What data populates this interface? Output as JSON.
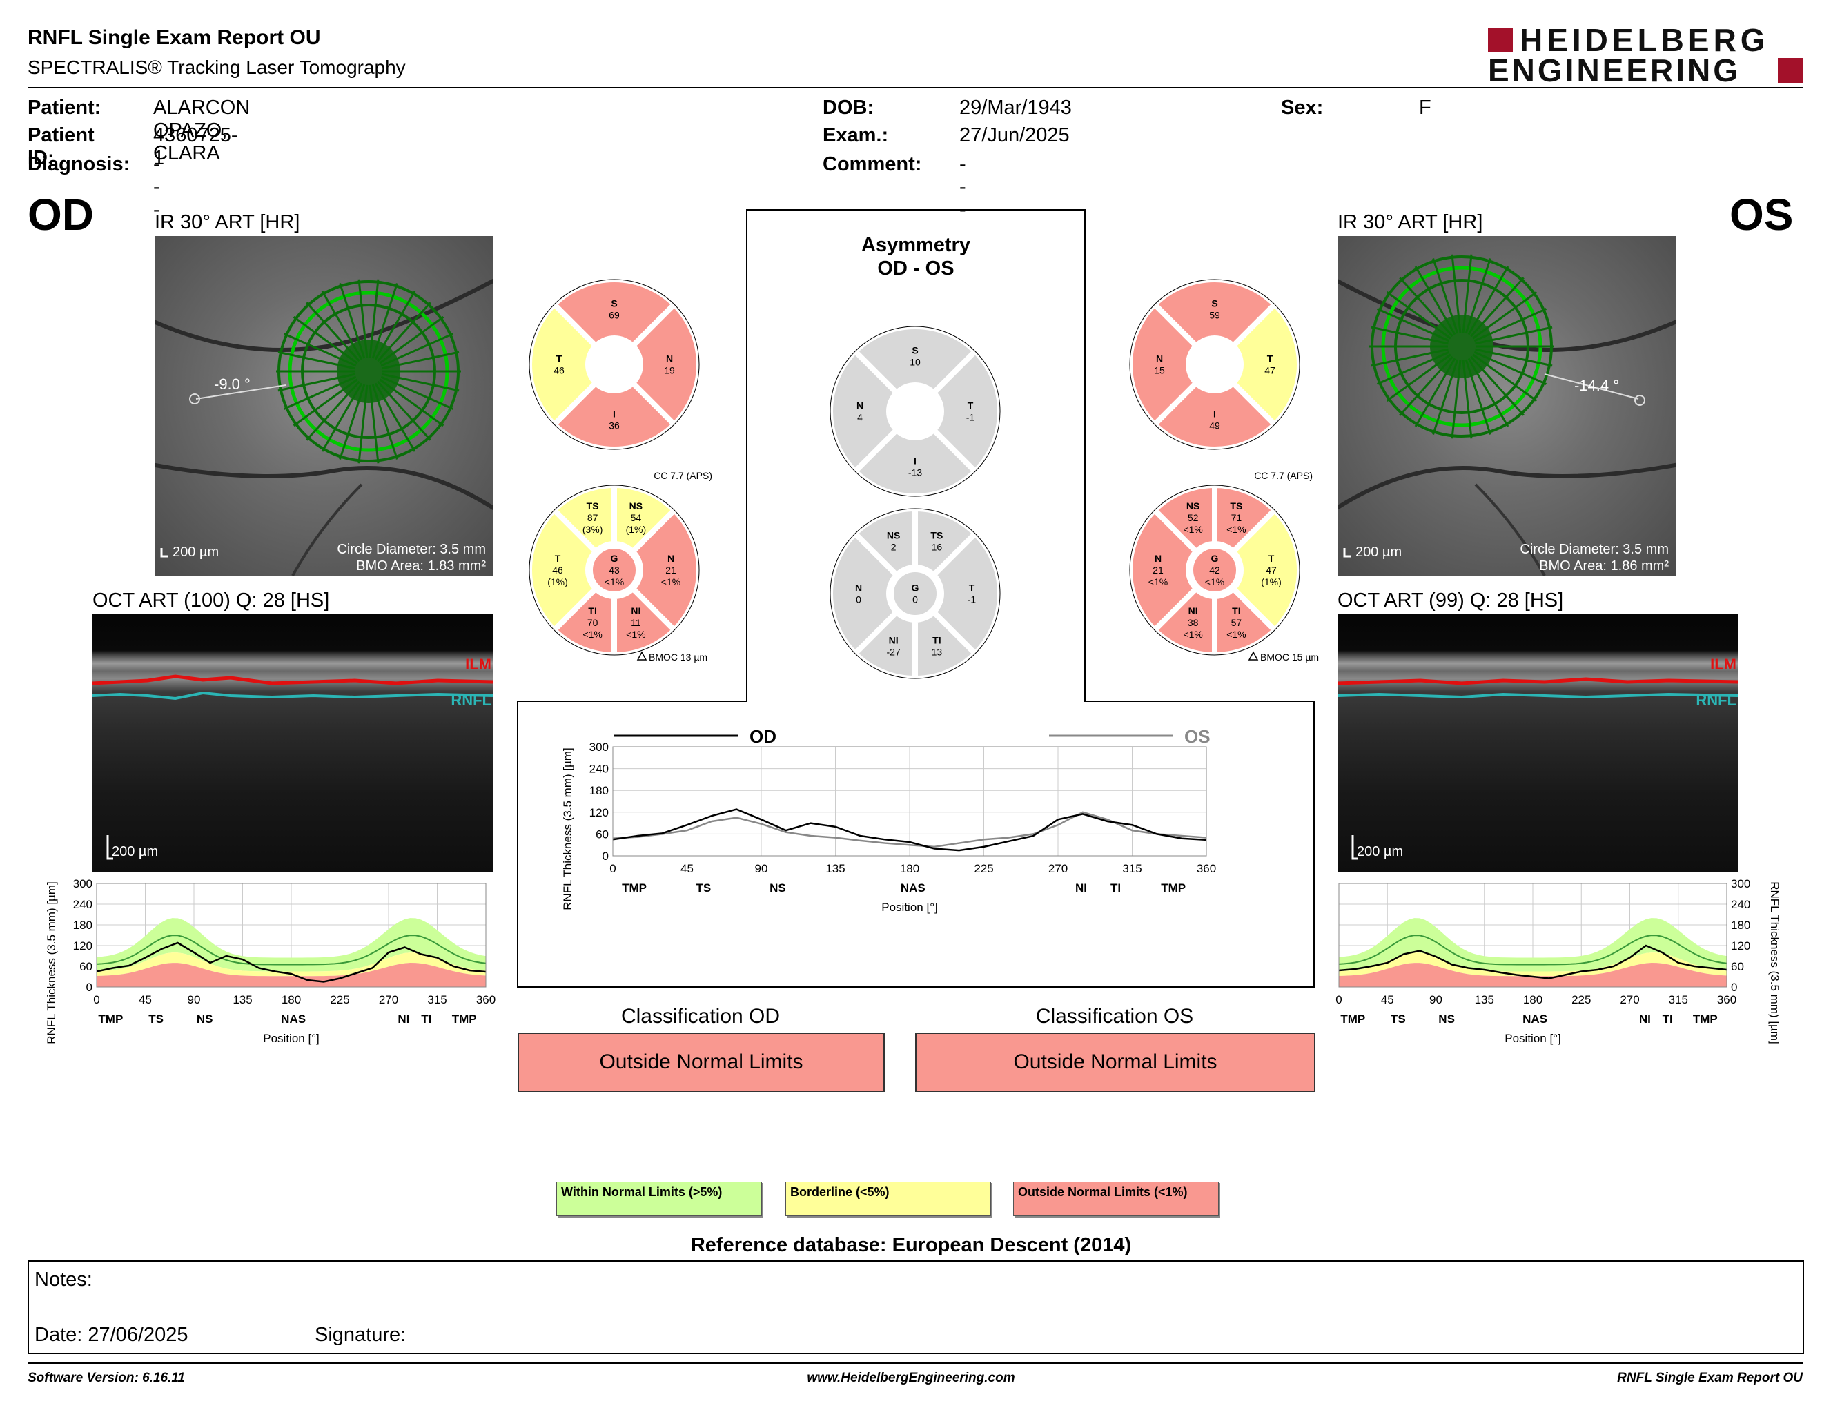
{
  "header": {
    "title": "RNFL Single Exam Report OU",
    "subtitle": "SPECTRALIS® Tracking Laser Tomography",
    "logo_line1": "HEIDELBERG",
    "logo_line2": "ENGINEERING"
  },
  "patient": {
    "patient_label": "Patient:",
    "patient_value": "ALARCON OPAZO, CLARA",
    "id_label": "Patient ID:",
    "id_value": "4360725-1",
    "diagnosis_label": "Diagnosis:",
    "diagnosis_value": "---",
    "dob_label": "DOB:",
    "dob_value": "29/Mar/1943",
    "exam_label": "Exam.:",
    "exam_value": "27/Jun/2025",
    "comment_label": "Comment:",
    "comment_value": "---",
    "sex_label": "Sex:",
    "sex_value": "F"
  },
  "od": {
    "eye": "OD",
    "ir_title": "IR 30° ART [HR]",
    "angle": "-9.0 °",
    "scale": "200 µm",
    "circle_diameter": "Circle Diameter: 3.5 mm",
    "bmo_area": "BMO Area: 1.83 mm²",
    "oct_title": "OCT ART (100) Q: 28 [HS]",
    "oct_scale": "200 µm",
    "ilm": "ILM",
    "rnfl": "RNFL",
    "sectors4": {
      "S": "69",
      "N": "19",
      "I": "36",
      "T": "46"
    },
    "cc": "CC 7.7 (APS)",
    "bmoc": "BMOC 13 µm",
    "sectors6": {
      "TS": [
        "87",
        "(3%)"
      ],
      "NS": [
        "54",
        "(1%)"
      ],
      "N": [
        "21",
        "<1%"
      ],
      "NI": [
        "11",
        "<1%"
      ],
      "TI": [
        "70",
        "<1%"
      ],
      "T": [
        "46",
        "(1%)"
      ],
      "G": [
        "43",
        "<1%"
      ]
    },
    "classification_title": "Classification OD",
    "classification_value": "Outside Normal Limits"
  },
  "os": {
    "eye": "OS",
    "ir_title": "IR 30° ART [HR]",
    "angle": "-14.4 °",
    "scale": "200 µm",
    "circle_diameter": "Circle Diameter: 3.5 mm",
    "bmo_area": "BMO Area: 1.86 mm²",
    "oct_title": "OCT ART (99) Q: 28 [HS]",
    "oct_scale": "200 µm",
    "ilm": "ILM",
    "rnfl": "RNFL",
    "sectors4": {
      "S": "59",
      "N": "15",
      "I": "49",
      "T": "47"
    },
    "cc": "CC 7.7 (APS)",
    "bmoc": "BMOC 15 µm",
    "sectors6": {
      "NS": [
        "52",
        "<1%"
      ],
      "TS": [
        "71",
        "<1%"
      ],
      "T": [
        "47",
        "(1%)"
      ],
      "TI": [
        "57",
        "<1%"
      ],
      "NI": [
        "38",
        "<1%"
      ],
      "N": [
        "21",
        "<1%"
      ],
      "G": [
        "42",
        "<1%"
      ]
    },
    "classification_title": "Classification OS",
    "classification_value": "Outside Normal Limits"
  },
  "asymmetry": {
    "title1": "Asymmetry",
    "title2": "OD - OS",
    "sectors4": {
      "S": "10",
      "N": "4",
      "T": "-1",
      "I": "-13"
    },
    "sectors6": {
      "NS": "2",
      "TS": "16",
      "N": "0",
      "G": "0",
      "T": "-1",
      "NI": "-27",
      "TI": "13"
    },
    "legend_od": "OD",
    "legend_os": "OS"
  },
  "charts": {
    "ylabel": "RNFL Thickness (3.5 mm) [µm]",
    "xlabel": "Position [°]",
    "x_ticks": [
      "0",
      "45",
      "90",
      "135",
      "180",
      "225",
      "270",
      "315",
      "360"
    ],
    "y_ticks": [
      "0",
      "60",
      "120",
      "180",
      "240",
      "300"
    ],
    "regions": [
      "TMP",
      "TS",
      "NS",
      "NAS",
      "NI",
      "TI",
      "TMP"
    ]
  },
  "chart_data": [
    {
      "type": "line",
      "title": "OD",
      "xlabel": "Position [°]",
      "ylabel": "RNFL Thickness (3.5 mm) [µm]",
      "xlim": [
        0,
        360
      ],
      "ylim": [
        0,
        300
      ],
      "x": [
        0,
        15,
        30,
        45,
        60,
        75,
        90,
        105,
        120,
        135,
        150,
        165,
        180,
        195,
        210,
        225,
        240,
        255,
        270,
        285,
        300,
        315,
        330,
        345,
        360
      ],
      "series": [
        {
          "name": "OD",
          "values": [
            45,
            55,
            62,
            85,
            110,
            128,
            100,
            70,
            90,
            80,
            55,
            45,
            38,
            20,
            15,
            25,
            40,
            55,
            100,
            115,
            95,
            85,
            60,
            48,
            44
          ]
        }
      ]
    },
    {
      "type": "line",
      "title": "OS",
      "xlabel": "Position [°]",
      "ylabel": "RNFL Thickness (3.5 mm) [µm]",
      "xlim": [
        0,
        360
      ],
      "ylim": [
        0,
        300
      ],
      "x": [
        0,
        15,
        30,
        45,
        60,
        75,
        90,
        105,
        120,
        135,
        150,
        165,
        180,
        195,
        210,
        225,
        240,
        255,
        270,
        285,
        300,
        315,
        330,
        345,
        360
      ],
      "series": [
        {
          "name": "OS",
          "values": [
            48,
            52,
            60,
            70,
            95,
            105,
            88,
            65,
            55,
            50,
            42,
            35,
            30,
            25,
            35,
            45,
            50,
            60,
            85,
            120,
            100,
            70,
            60,
            55,
            50
          ]
        }
      ]
    },
    {
      "type": "line",
      "title": "OD - OS",
      "xlabel": "Position [°]",
      "ylabel": "RNFL Thickness (3.5 mm) [µm]",
      "xlim": [
        0,
        360
      ],
      "ylim": [
        0,
        300
      ],
      "x": [
        0,
        15,
        30,
        45,
        60,
        75,
        90,
        105,
        120,
        135,
        150,
        165,
        180,
        195,
        210,
        225,
        240,
        255,
        270,
        285,
        300,
        315,
        330,
        345,
        360
      ],
      "series": [
        {
          "name": "OD",
          "values": [
            45,
            55,
            62,
            85,
            110,
            128,
            100,
            70,
            90,
            80,
            55,
            45,
            38,
            20,
            15,
            25,
            40,
            55,
            100,
            115,
            95,
            85,
            60,
            48,
            44
          ]
        },
        {
          "name": "OS",
          "values": [
            48,
            52,
            60,
            70,
            95,
            105,
            88,
            65,
            55,
            50,
            42,
            35,
            30,
            25,
            35,
            45,
            50,
            60,
            85,
            120,
            100,
            70,
            60,
            55,
            50
          ]
        }
      ]
    }
  ],
  "legend": {
    "wnl": "Within Normal Limits (>5%)",
    "bl": "Borderline (<5%)",
    "onl": "Outside Normal Limits (<1%)",
    "reference": "Reference database: European Descent (2014)"
  },
  "colors": {
    "green": "#ccff99",
    "yellow": "#ffff99",
    "red": "#f99890",
    "gray": "#d8d8d8",
    "brand": "#a3112a"
  },
  "notes": {
    "notes_label": "Notes:",
    "date": "Date: 27/06/2025",
    "signature": "Signature:"
  },
  "footer": {
    "version": "Software Version: 6.16.11",
    "url": "www.HeidelbergEngineering.com",
    "report": "RNFL Single Exam Report OU"
  }
}
